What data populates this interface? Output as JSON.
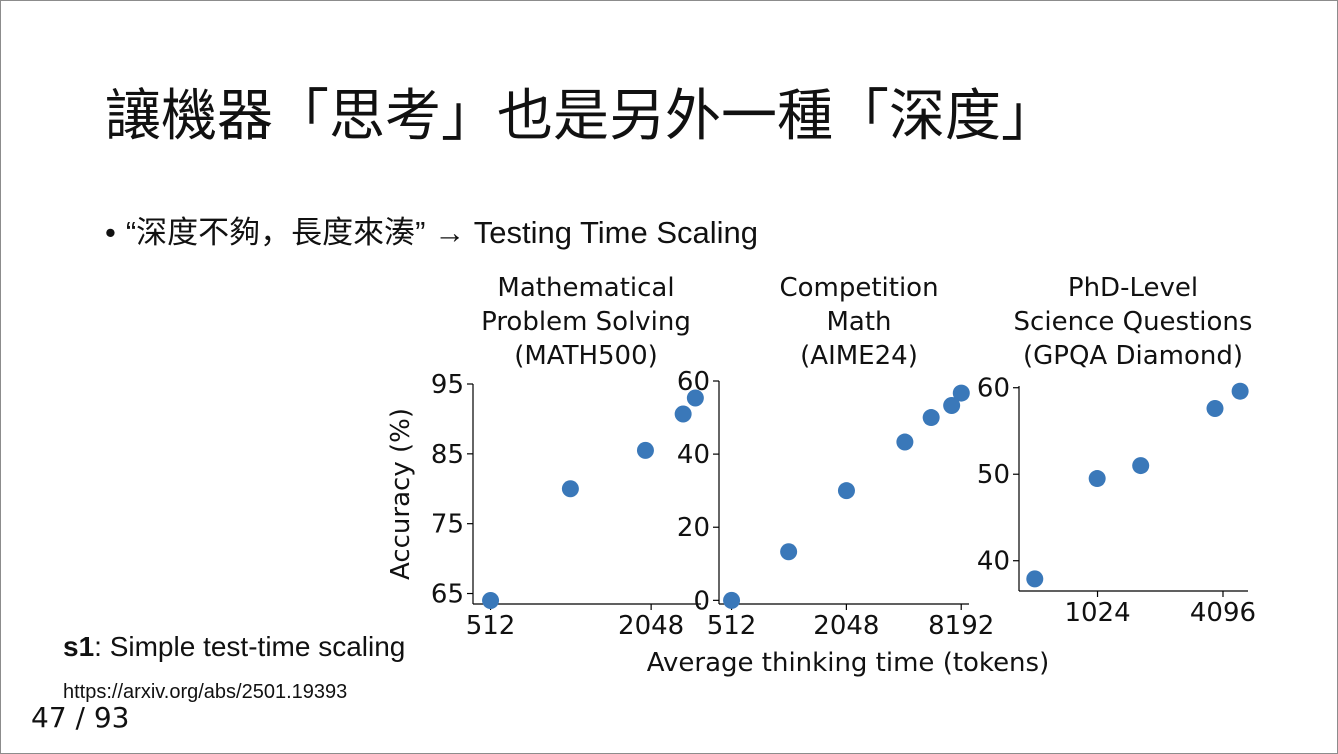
{
  "slide": {
    "title": "讓機器「思考」也是另外一種「深度」",
    "bullet_dot": "•",
    "bullet_text": "“深度不夠，長度來湊” → Testing Time Scaling",
    "note_bold": "s1",
    "note_rest": ": Simple test-time scaling",
    "url": "https://arxiv.org/abs/2501.19393",
    "page_number": "47 / 93"
  },
  "colors": {
    "marker": "#3a78b9",
    "axis": "#000000"
  },
  "chart_data": [
    {
      "type": "scatter",
      "title": [
        "Mathematical",
        "Problem Solving",
        "(MATH500)"
      ],
      "ylabel": "Accuracy (%)",
      "xlabel": "",
      "x_scale": "log2",
      "xlim": [
        440,
        3150
      ],
      "ylim": [
        63.5,
        95
      ],
      "x_ticks": [
        512,
        2048
      ],
      "y_ticks": [
        65,
        75,
        85,
        95
      ],
      "points": [
        {
          "x": 512,
          "y": 64
        },
        {
          "x": 1020,
          "y": 80
        },
        {
          "x": 1950,
          "y": 85.5
        },
        {
          "x": 2700,
          "y": 90.7
        },
        {
          "x": 3000,
          "y": 93
        }
      ]
    },
    {
      "type": "scatter",
      "title": [
        "Competition",
        "Math",
        "(AIME24)"
      ],
      "ylabel": "",
      "xlabel": "Average thinking time (tokens)",
      "x_scale": "log2",
      "xlim": [
        440,
        9000
      ],
      "ylim": [
        -1,
        60
      ],
      "x_ticks": [
        512,
        2048,
        8192
      ],
      "y_ticks": [
        0,
        20,
        40,
        60
      ],
      "points": [
        {
          "x": 512,
          "y": 0
        },
        {
          "x": 1020,
          "y": 13.3
        },
        {
          "x": 2050,
          "y": 30
        },
        {
          "x": 4150,
          "y": 43.3
        },
        {
          "x": 5700,
          "y": 50
        },
        {
          "x": 7300,
          "y": 53.3
        },
        {
          "x": 8200,
          "y": 56.7
        }
      ]
    },
    {
      "type": "scatter",
      "title": [
        "PhD-Level",
        "Science Questions",
        "(GPQA Diamond)"
      ],
      "ylabel": "",
      "xlabel": "",
      "x_scale": "log2",
      "xlim": [
        430,
        5400
      ],
      "ylim": [
        36.5,
        60.2
      ],
      "x_ticks": [
        1024,
        4096
      ],
      "y_ticks": [
        40,
        50,
        60
      ],
      "points": [
        {
          "x": 512,
          "y": 37.9
        },
        {
          "x": 1020,
          "y": 49.5
        },
        {
          "x": 1650,
          "y": 51
        },
        {
          "x": 3750,
          "y": 57.6
        },
        {
          "x": 4950,
          "y": 59.6
        }
      ]
    }
  ]
}
